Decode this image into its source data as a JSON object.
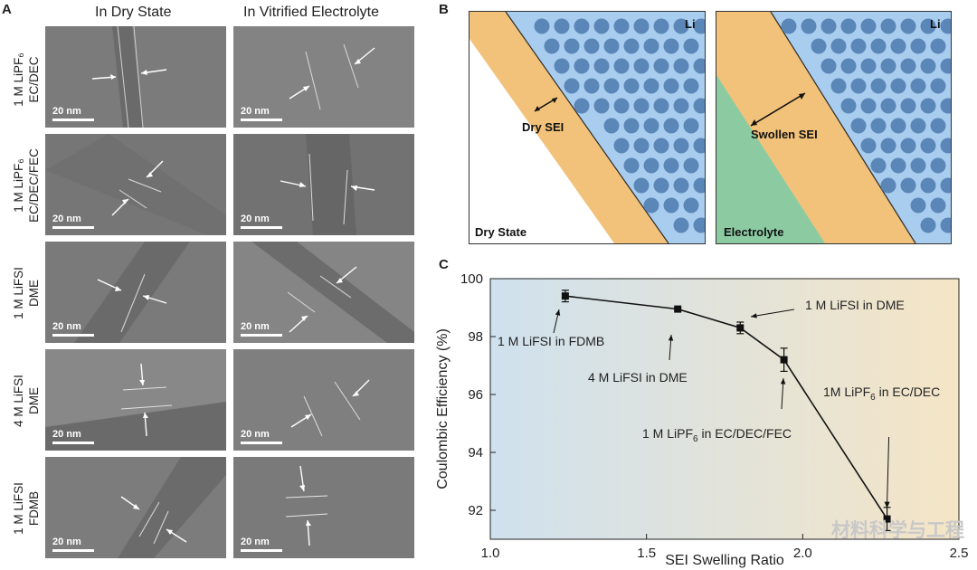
{
  "panel_a": {
    "letter": "A",
    "columns": [
      "In Dry State",
      "In Vitrified Electrolyte"
    ],
    "rows": [
      {
        "line1": "1 M LiPF₆",
        "line2": "EC/DEC"
      },
      {
        "line1": "1 M LiPF₆",
        "line2": "EC/DEC/FEC"
      },
      {
        "line1": "1 M LiFSI",
        "line2": "DME"
      },
      {
        "line1": "4 M LiFSI",
        "line2": "DME"
      },
      {
        "line1": "1 M LiFSI",
        "line2": "FDMB"
      }
    ],
    "scale_label": "20 nm"
  },
  "panel_b": {
    "letter": "B",
    "left": {
      "corner": "Li",
      "sei_label": "Dry SEI",
      "state_label": "Dry State"
    },
    "right": {
      "corner": "Li",
      "sei_label": "Swollen SEI",
      "state_label": "Electrolyte"
    },
    "colors": {
      "li": "#a9cdee",
      "li_dots": "#5b86b8",
      "sei": "#f2c27a",
      "electrolyte": "#8ccba2"
    }
  },
  "panel_c": {
    "letter": "C",
    "chart_data": {
      "type": "scatter",
      "xlabel": "SEI Swelling Ratio",
      "ylabel": "Coulombic Efficiency (%)",
      "xlim": [
        1.0,
        2.5
      ],
      "ylim": [
        91.0,
        100.0
      ],
      "xticks": [
        1.0,
        1.5,
        2.0,
        2.5
      ],
      "xtick_labels": [
        "1.0",
        "1.5",
        "2.0",
        "2.5"
      ],
      "yticks": [
        92,
        94,
        96,
        98,
        100
      ],
      "ytick_labels": [
        "92",
        "94",
        "96",
        "98",
        "100"
      ],
      "series": [
        {
          "points": [
            {
              "x": 1.24,
              "y": 99.4,
              "err": 0.2
            },
            {
              "x": 1.6,
              "y": 98.95,
              "err": 0.05
            },
            {
              "x": 1.8,
              "y": 98.3,
              "err": 0.2
            },
            {
              "x": 1.94,
              "y": 97.2,
              "err": 0.4
            },
            {
              "x": 2.27,
              "y": 91.7,
              "err": 0.4
            }
          ]
        }
      ],
      "annotations": [
        {
          "text": "1 M LiFSI in DME",
          "sub": "",
          "tail": ""
        },
        {
          "text": "1 M LiFSI in FDMB",
          "sub": "",
          "tail": ""
        },
        {
          "text": "4 M LiFSI in DME",
          "sub": "",
          "tail": ""
        },
        {
          "text": "1M LiPF",
          "sub": "6",
          "tail": " in EC/DEC"
        },
        {
          "text": "1 M LiPF",
          "sub": "6",
          "tail": " in EC/DEC/FEC"
        }
      ],
      "background_gradient": [
        "#cfe1ee",
        "#f5e5c6"
      ]
    }
  },
  "watermark": "材料科学与工程"
}
